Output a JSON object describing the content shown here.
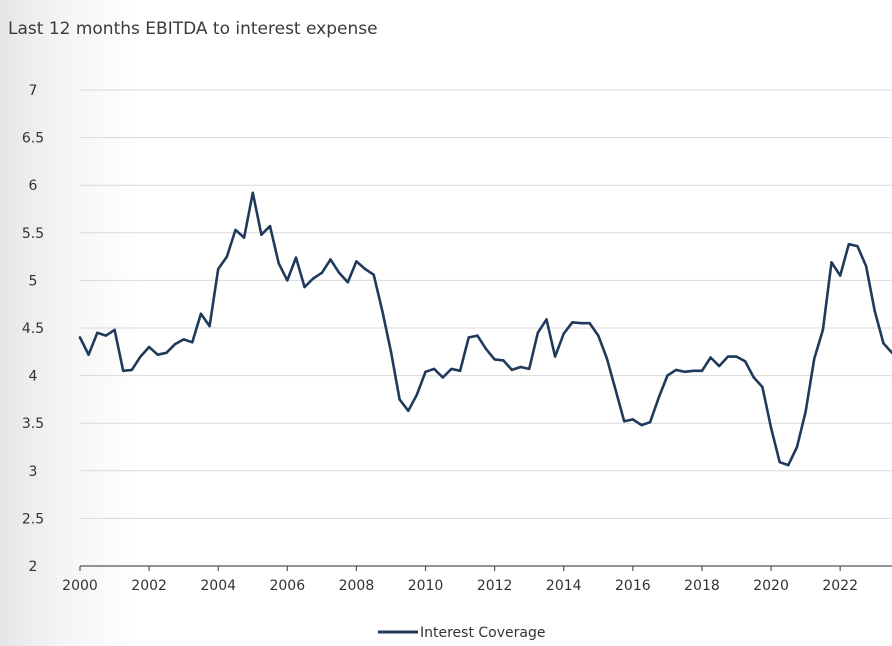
{
  "chart_data": {
    "type": "line",
    "title": "Last 12 months EBITDA to interest expense",
    "xlabel": "",
    "ylabel": "",
    "xlim": [
      2000,
      2023.5
    ],
    "ylim": [
      2,
      7
    ],
    "y_ticks": [
      "2",
      "2.5",
      "3",
      "3.5",
      "4",
      "4.5",
      "5",
      "5.5",
      "6",
      "6.5",
      "7"
    ],
    "x_ticks": [
      "2000",
      "2002",
      "2004",
      "2006",
      "2008",
      "2010",
      "2012",
      "2014",
      "2016",
      "2018",
      "2020",
      "2022"
    ],
    "grid": true,
    "legend_position": "bottom",
    "series": [
      {
        "name": "Interest Coverage",
        "color": "#1f3a5a",
        "x": [
          2000.0,
          2000.25,
          2000.5,
          2000.75,
          2001.0,
          2001.25,
          2001.5,
          2001.75,
          2002.0,
          2002.25,
          2002.5,
          2002.75,
          2003.0,
          2003.25,
          2003.5,
          2003.75,
          2004.0,
          2004.25,
          2004.5,
          2004.75,
          2005.0,
          2005.25,
          2005.5,
          2005.75,
          2006.0,
          2006.25,
          2006.5,
          2006.75,
          2007.0,
          2007.25,
          2007.5,
          2007.75,
          2008.0,
          2008.25,
          2008.5,
          2008.75,
          2009.0,
          2009.25,
          2009.5,
          2009.75,
          2010.0,
          2010.25,
          2010.5,
          2010.75,
          2011.0,
          2011.25,
          2011.5,
          2011.75,
          2012.0,
          2012.25,
          2012.5,
          2012.75,
          2013.0,
          2013.25,
          2013.5,
          2013.75,
          2014.0,
          2014.25,
          2014.5,
          2014.75,
          2015.0,
          2015.25,
          2015.5,
          2015.75,
          2016.0,
          2016.25,
          2016.5,
          2016.75,
          2017.0,
          2017.25,
          2017.5,
          2017.75,
          2018.0,
          2018.25,
          2018.5,
          2018.75,
          2019.0,
          2019.25,
          2019.5,
          2019.75,
          2020.0,
          2020.25,
          2020.5,
          2020.75,
          2021.0,
          2021.25,
          2021.5,
          2021.75,
          2022.0,
          2022.25,
          2022.5,
          2022.75,
          2023.0,
          2023.25,
          2023.5
        ],
        "values": [
          4.4,
          4.22,
          4.45,
          4.42,
          4.48,
          4.05,
          4.06,
          4.2,
          4.3,
          4.22,
          4.24,
          4.33,
          4.38,
          4.35,
          4.65,
          4.52,
          5.12,
          5.25,
          5.53,
          5.45,
          5.92,
          5.48,
          5.57,
          5.18,
          5.0,
          5.24,
          4.93,
          5.02,
          5.08,
          5.22,
          5.08,
          4.98,
          5.2,
          5.12,
          5.06,
          4.68,
          4.25,
          3.75,
          3.63,
          3.8,
          4.04,
          4.07,
          3.98,
          4.07,
          4.05,
          4.4,
          4.42,
          4.28,
          4.17,
          4.16,
          4.06,
          4.09,
          4.07,
          4.45,
          4.59,
          4.2,
          4.44,
          4.56,
          4.55,
          4.55,
          4.42,
          4.18,
          3.85,
          3.52,
          3.54,
          3.48,
          3.51,
          3.77,
          4.0,
          4.06,
          4.04,
          4.05,
          4.05,
          4.19,
          4.1,
          4.2,
          4.2,
          4.15,
          3.98,
          3.88,
          3.45,
          3.09,
          3.06,
          3.25,
          3.62,
          4.18,
          4.48,
          5.19,
          5.05,
          5.38,
          5.36,
          5.15,
          4.68,
          4.34,
          4.24
        ]
      }
    ]
  }
}
